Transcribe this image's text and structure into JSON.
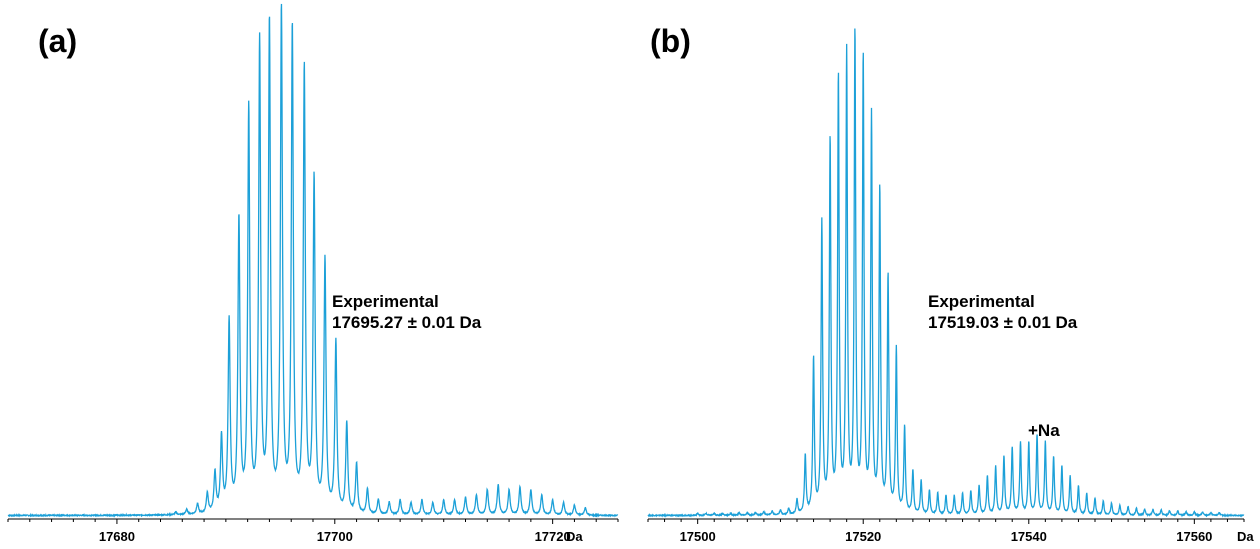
{
  "chart_data": [
    {
      "type": "line",
      "panel_label": "(a)",
      "annotation": [
        "Experimental",
        "17695.27 ± 0.01 Da"
      ],
      "x_unit": "Da",
      "xlim": [
        17670,
        17726
      ],
      "xticks": [
        17680,
        17700,
        17720
      ],
      "ylim": [
        0,
        1
      ],
      "grid": false,
      "color": "#1ca0d8",
      "peaks": [
        [
          17685.4,
          0.005
        ],
        [
          17686.4,
          0.01
        ],
        [
          17687.4,
          0.02
        ],
        [
          17688.3,
          0.04
        ],
        [
          17689.0,
          0.08
        ],
        [
          17689.6,
          0.15
        ],
        [
          17690.3,
          0.38
        ],
        [
          17691.2,
          0.58
        ],
        [
          17692.1,
          0.8
        ],
        [
          17693.1,
          0.93
        ],
        [
          17694.0,
          0.97
        ],
        [
          17695.1,
          1.0
        ],
        [
          17696.1,
          0.96
        ],
        [
          17697.2,
          0.88
        ],
        [
          17698.1,
          0.66
        ],
        [
          17699.1,
          0.5
        ],
        [
          17700.1,
          0.34
        ],
        [
          17701.1,
          0.18
        ],
        [
          17702.0,
          0.1
        ],
        [
          17703.0,
          0.05
        ],
        [
          17704.0,
          0.03
        ],
        [
          17705.0,
          0.025
        ],
        [
          17706.0,
          0.03
        ],
        [
          17707.0,
          0.025
        ],
        [
          17708.0,
          0.03
        ],
        [
          17709.0,
          0.025
        ],
        [
          17710.0,
          0.03
        ],
        [
          17711.0,
          0.03
        ],
        [
          17712.0,
          0.035
        ],
        [
          17713.0,
          0.04
        ],
        [
          17714.0,
          0.05
        ],
        [
          17715.0,
          0.06
        ],
        [
          17716.0,
          0.05
        ],
        [
          17717.0,
          0.055
        ],
        [
          17718.0,
          0.05
        ],
        [
          17719.0,
          0.04
        ],
        [
          17720.0,
          0.03
        ],
        [
          17721.0,
          0.025
        ],
        [
          17722.0,
          0.02
        ],
        [
          17723.0,
          0.015
        ]
      ]
    },
    {
      "type": "line",
      "panel_label": "(b)",
      "annotation": [
        "Experimental",
        "17519.03 ± 0.01 Da"
      ],
      "peak_label": "+Na",
      "x_unit": "Da",
      "xlim": [
        17494,
        17566
      ],
      "xticks": [
        17500,
        17520,
        17540,
        17560
      ],
      "ylim": [
        0,
        1
      ],
      "grid": false,
      "color": "#1ca0d8",
      "peaks": [
        [
          17500.0,
          0.004
        ],
        [
          17501.0,
          0.004
        ],
        [
          17502.0,
          0.004
        ],
        [
          17503.0,
          0.004
        ],
        [
          17504.0,
          0.004
        ],
        [
          17505.0,
          0.005
        ],
        [
          17506.0,
          0.005
        ],
        [
          17507.0,
          0.006
        ],
        [
          17508.0,
          0.007
        ],
        [
          17509.0,
          0.008
        ],
        [
          17510.0,
          0.01
        ],
        [
          17511.0,
          0.013
        ],
        [
          17512.0,
          0.03
        ],
        [
          17513.0,
          0.12
        ],
        [
          17514.0,
          0.32
        ],
        [
          17515.0,
          0.6
        ],
        [
          17516.0,
          0.77
        ],
        [
          17517.0,
          0.9
        ],
        [
          17518.0,
          0.95
        ],
        [
          17519.0,
          0.99
        ],
        [
          17520.0,
          0.94
        ],
        [
          17521.0,
          0.82
        ],
        [
          17522.0,
          0.67
        ],
        [
          17523.0,
          0.49
        ],
        [
          17524.0,
          0.34
        ],
        [
          17525.0,
          0.18
        ],
        [
          17526.0,
          0.09
        ],
        [
          17527.0,
          0.07
        ],
        [
          17528.0,
          0.05
        ],
        [
          17529.0,
          0.045
        ],
        [
          17530.0,
          0.04
        ],
        [
          17531.0,
          0.04
        ],
        [
          17532.0,
          0.045
        ],
        [
          17533.0,
          0.05
        ],
        [
          17534.0,
          0.06
        ],
        [
          17535.0,
          0.08
        ],
        [
          17536.0,
          0.1
        ],
        [
          17537.0,
          0.12
        ],
        [
          17538.0,
          0.14
        ],
        [
          17539.0,
          0.15
        ],
        [
          17540.0,
          0.15
        ],
        [
          17541.0,
          0.165
        ],
        [
          17542.0,
          0.15
        ],
        [
          17543.0,
          0.12
        ],
        [
          17544.0,
          0.1
        ],
        [
          17545.0,
          0.08
        ],
        [
          17546.0,
          0.06
        ],
        [
          17547.0,
          0.045
        ],
        [
          17548.0,
          0.035
        ],
        [
          17549.0,
          0.03
        ],
        [
          17550.0,
          0.025
        ],
        [
          17551.0,
          0.02
        ],
        [
          17552.0,
          0.018
        ],
        [
          17553.0,
          0.015
        ],
        [
          17554.0,
          0.013
        ],
        [
          17555.0,
          0.012
        ],
        [
          17556.0,
          0.011
        ],
        [
          17557.0,
          0.01
        ],
        [
          17558.0,
          0.009
        ],
        [
          17559.0,
          0.008
        ],
        [
          17560.0,
          0.007
        ],
        [
          17561.0,
          0.007
        ],
        [
          17562.0,
          0.006
        ],
        [
          17563.0,
          0.006
        ]
      ]
    }
  ]
}
